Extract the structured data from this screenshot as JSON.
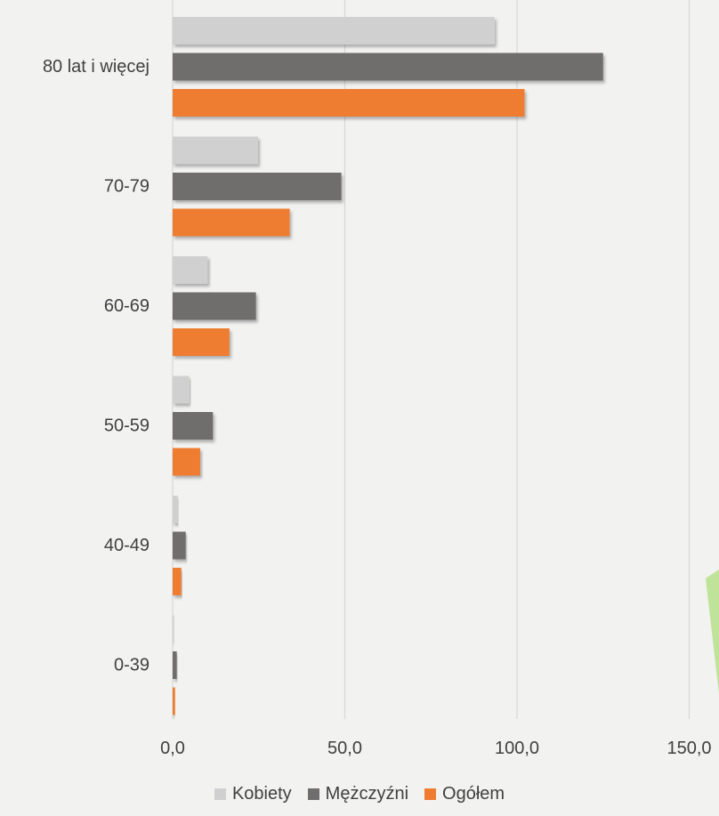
{
  "chart_data": {
    "type": "bar",
    "orientation": "horizontal",
    "title": "",
    "xlabel": "",
    "ylabel": "",
    "categories": [
      "80 lat i więcej",
      "70-79",
      "60-69",
      "50-59",
      "40-49",
      "0-39"
    ],
    "series": [
      {
        "name": "Kobiety",
        "color": "#d0d0d0",
        "values": [
          93.5,
          24.8,
          10.2,
          4.8,
          1.5,
          0.4
        ]
      },
      {
        "name": "Mężczyźni",
        "color": "#6f6d6d",
        "values": [
          125.0,
          49.0,
          24.2,
          11.7,
          3.8,
          1.2
        ]
      },
      {
        "name": "Ogółem",
        "color": "#ee7d31",
        "values": [
          102.2,
          34.0,
          16.5,
          8.0,
          2.5,
          0.7
        ]
      }
    ],
    "xlim": [
      0,
      150
    ],
    "xticks": [
      0,
      50,
      100,
      150
    ],
    "xtick_labels": [
      "0,0",
      "50,0",
      "100,0",
      "150,0"
    ],
    "grid": "vertical",
    "legend": "bottom-center"
  }
}
